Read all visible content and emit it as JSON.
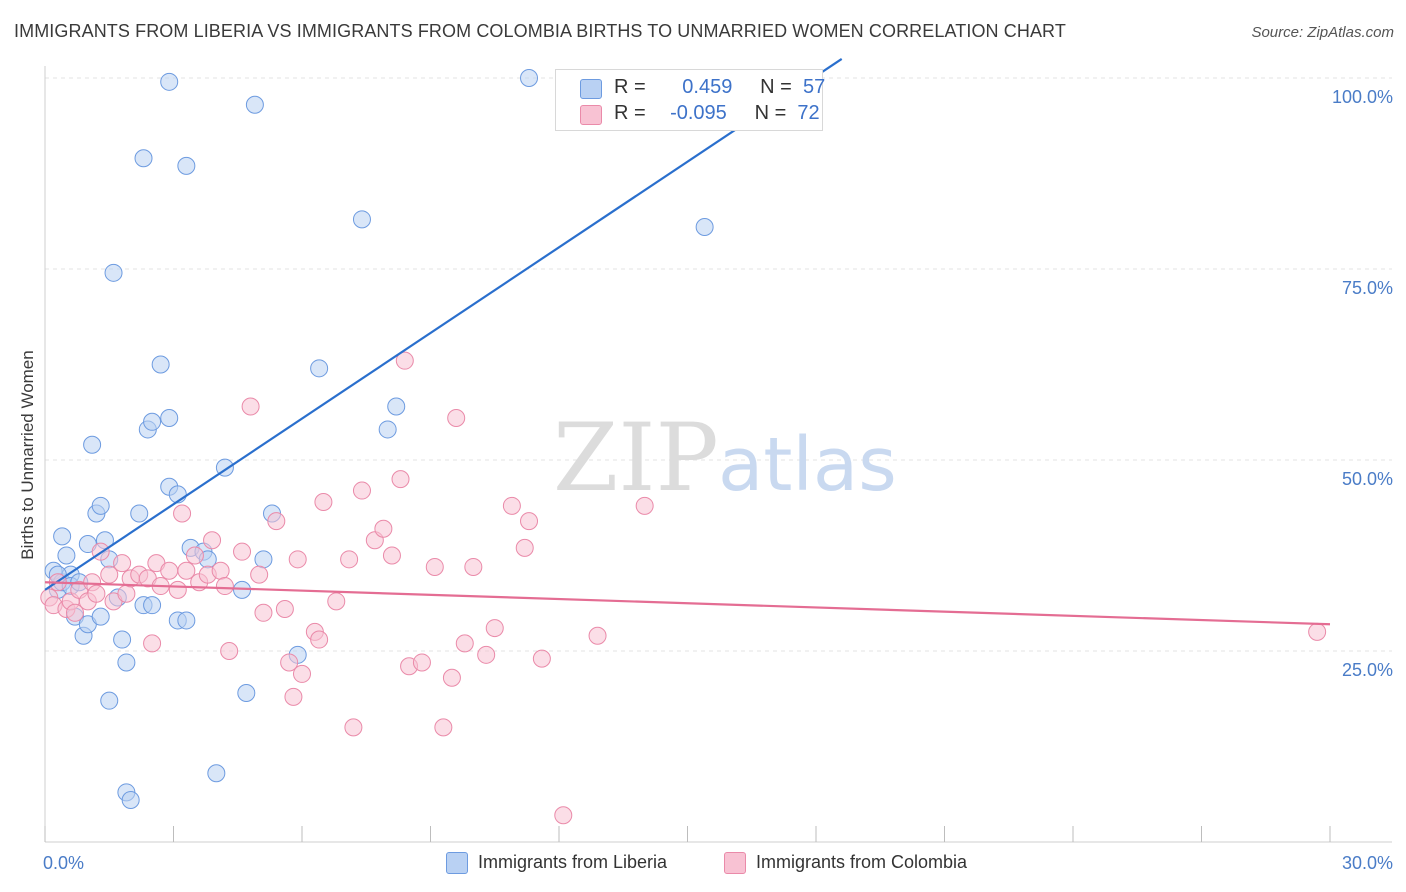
{
  "header": {
    "title": "IMMIGRANTS FROM LIBERIA VS IMMIGRANTS FROM COLOMBIA BIRTHS TO UNMARRIED WOMEN CORRELATION CHART",
    "source": "Source: ZipAtlas.com"
  },
  "watermark": {
    "zip": "ZIP",
    "atlas": "atlas"
  },
  "legend": {
    "liberia": {
      "r_label": "R =",
      "r_value": "0.459",
      "n_label": "N =",
      "n_value": "57"
    },
    "colombia": {
      "r_label": "R =",
      "r_value": "-0.095",
      "n_label": "N =",
      "n_value": "72"
    }
  },
  "colors": {
    "liberia_fill": "#b9d1f3",
    "liberia_stroke": "#6d9be0",
    "liberia_line": "#2a6fcd",
    "colombia_fill": "#f8c2d3",
    "colombia_stroke": "#ea8aa9",
    "colombia_line": "#e46d93",
    "tick_text": "#4a7cc7",
    "grid": "#e3e3e3"
  },
  "chart_data": {
    "type": "scatter",
    "title": "IMMIGRANTS FROM LIBERIA VS IMMIGRANTS FROM COLOMBIA BIRTHS TO UNMARRIED WOMEN CORRELATION CHART",
    "xlabel": "",
    "ylabel": "Births to Unmarried Women",
    "xlim": [
      0,
      30
    ],
    "ylim": [
      0,
      100
    ],
    "x_tick_labels": [
      "0.0%",
      "30.0%"
    ],
    "y_ticks": [
      25,
      50,
      75,
      100
    ],
    "y_tick_labels": [
      "25.0%",
      "50.0%",
      "75.0%",
      "100.0%"
    ],
    "grid": true,
    "legend_position": "bottom",
    "series": [
      {
        "name": "Immigrants from Liberia",
        "trend": {
          "x": [
            0,
            18.6
          ],
          "y": [
            33.0,
            102.5
          ]
        },
        "points": [
          [
            0.2,
            35.5
          ],
          [
            0.3,
            33.0
          ],
          [
            0.4,
            34.0
          ],
          [
            0.4,
            40.0
          ],
          [
            0.5,
            37.5
          ],
          [
            0.6,
            35.0
          ],
          [
            0.6,
            33.5
          ],
          [
            0.7,
            29.5
          ],
          [
            0.8,
            34.0
          ],
          [
            0.9,
            27.0
          ],
          [
            1.0,
            28.5
          ],
          [
            1.0,
            39.0
          ],
          [
            1.1,
            52.0
          ],
          [
            1.2,
            43.0
          ],
          [
            1.3,
            44.0
          ],
          [
            1.3,
            29.5
          ],
          [
            1.4,
            39.5
          ],
          [
            1.5,
            37.0
          ],
          [
            1.5,
            18.5
          ],
          [
            1.6,
            74.5
          ],
          [
            1.7,
            32.0
          ],
          [
            1.8,
            26.5
          ],
          [
            1.9,
            6.5
          ],
          [
            1.9,
            23.5
          ],
          [
            2.0,
            5.5
          ],
          [
            2.2,
            43.0
          ],
          [
            2.3,
            89.5
          ],
          [
            2.3,
            31.0
          ],
          [
            2.4,
            54.0
          ],
          [
            2.5,
            31.0
          ],
          [
            2.7,
            62.5
          ],
          [
            2.9,
            46.5
          ],
          [
            2.9,
            55.5
          ],
          [
            2.9,
            99.5
          ],
          [
            3.1,
            45.5
          ],
          [
            3.1,
            29.0
          ],
          [
            3.3,
            29.0
          ],
          [
            3.3,
            88.5
          ],
          [
            3.4,
            38.5
          ],
          [
            3.7,
            38.0
          ],
          [
            3.8,
            37.0
          ],
          [
            4.0,
            9.0
          ],
          [
            4.2,
            49.0
          ],
          [
            4.6,
            33.0
          ],
          [
            4.7,
            19.5
          ],
          [
            4.9,
            96.5
          ],
          [
            5.1,
            37.0
          ],
          [
            5.3,
            43.0
          ],
          [
            5.9,
            24.5
          ],
          [
            6.4,
            62.0
          ],
          [
            7.4,
            81.5
          ],
          [
            8.0,
            54.0
          ],
          [
            8.2,
            57.0
          ],
          [
            11.3,
            100.0
          ],
          [
            15.4,
            80.5
          ],
          [
            2.5,
            55.0
          ],
          [
            0.3,
            35.0
          ]
        ]
      },
      {
        "name": "Immigrants from Colombia",
        "trend": {
          "x": [
            0,
            30
          ],
          "y": [
            34.0,
            28.5
          ]
        },
        "points": [
          [
            0.1,
            32.0
          ],
          [
            0.2,
            31.0
          ],
          [
            0.3,
            34.0
          ],
          [
            0.5,
            30.5
          ],
          [
            0.6,
            31.5
          ],
          [
            0.7,
            30.0
          ],
          [
            0.8,
            33.0
          ],
          [
            1.0,
            31.5
          ],
          [
            1.1,
            34.0
          ],
          [
            1.2,
            32.5
          ],
          [
            1.3,
            38.0
          ],
          [
            1.5,
            35.0
          ],
          [
            1.6,
            31.5
          ],
          [
            1.8,
            36.5
          ],
          [
            1.9,
            32.5
          ],
          [
            2.0,
            34.5
          ],
          [
            2.2,
            35.0
          ],
          [
            2.4,
            34.5
          ],
          [
            2.5,
            26.0
          ],
          [
            2.6,
            36.5
          ],
          [
            2.7,
            33.5
          ],
          [
            2.9,
            35.5
          ],
          [
            3.1,
            33.0
          ],
          [
            3.2,
            43.0
          ],
          [
            3.3,
            35.5
          ],
          [
            3.5,
            37.5
          ],
          [
            3.6,
            34.0
          ],
          [
            3.8,
            35.0
          ],
          [
            3.9,
            39.5
          ],
          [
            4.1,
            35.5
          ],
          [
            4.2,
            33.5
          ],
          [
            4.3,
            25.0
          ],
          [
            4.6,
            38.0
          ],
          [
            4.8,
            57.0
          ],
          [
            5.0,
            35.0
          ],
          [
            5.1,
            30.0
          ],
          [
            5.4,
            42.0
          ],
          [
            5.6,
            30.5
          ],
          [
            5.7,
            23.5
          ],
          [
            5.8,
            19.0
          ],
          [
            5.9,
            37.0
          ],
          [
            6.0,
            22.0
          ],
          [
            6.3,
            27.5
          ],
          [
            6.4,
            26.5
          ],
          [
            6.5,
            44.5
          ],
          [
            6.8,
            31.5
          ],
          [
            7.1,
            37.0
          ],
          [
            7.2,
            15.0
          ],
          [
            7.4,
            46.0
          ],
          [
            7.7,
            39.5
          ],
          [
            7.9,
            41.0
          ],
          [
            8.1,
            37.5
          ],
          [
            8.3,
            47.5
          ],
          [
            8.4,
            63.0
          ],
          [
            8.5,
            23.0
          ],
          [
            8.8,
            23.5
          ],
          [
            9.1,
            36.0
          ],
          [
            9.3,
            15.0
          ],
          [
            9.5,
            21.5
          ],
          [
            9.6,
            55.5
          ],
          [
            9.8,
            26.0
          ],
          [
            10.0,
            36.0
          ],
          [
            10.3,
            24.5
          ],
          [
            10.5,
            28.0
          ],
          [
            10.9,
            44.0
          ],
          [
            11.2,
            38.5
          ],
          [
            11.3,
            42.0
          ],
          [
            11.6,
            24.0
          ],
          [
            12.1,
            3.5
          ],
          [
            12.9,
            27.0
          ],
          [
            14.0,
            44.0
          ],
          [
            29.7,
            27.5
          ]
        ]
      }
    ]
  }
}
